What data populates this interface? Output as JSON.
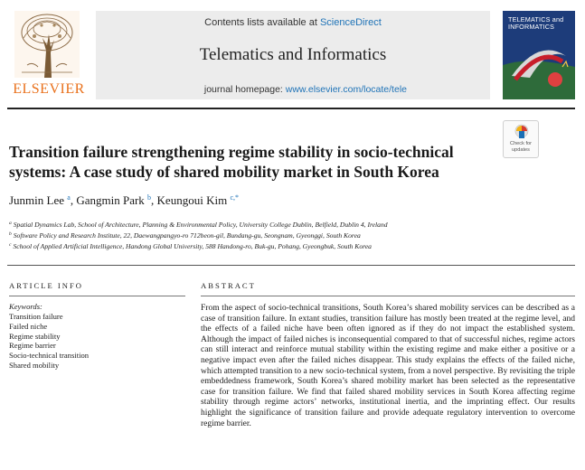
{
  "header": {
    "publisher": "ELSEVIER",
    "contents_prefix": "Contents lists available at ",
    "contents_link": "ScienceDirect",
    "journal_title": "Telematics and Informatics",
    "homepage_prefix": "journal homepage: ",
    "homepage_url": "www.elsevier.com/locate/tele",
    "cover_title": "TELEMATICS and INFORMATICS"
  },
  "check_updates": "Check for updates",
  "article": {
    "title": "Transition failure strengthening regime stability in socio-technical systems: A case study of shared mobility market in South Korea",
    "authors": [
      {
        "name": "Junmin Lee",
        "sup": "a"
      },
      {
        "name": "Gangmin Park",
        "sup": "b"
      },
      {
        "name": "Keungoui Kim",
        "sup": "c,*"
      }
    ],
    "affiliations": [
      {
        "sup": "a",
        "text": "Spatial Dynamics Lab, School of Architecture, Planning & Environmental Policy, University College Dublin, Belfield, Dublin 4, Ireland"
      },
      {
        "sup": "b",
        "text": "Software Policy and Research Institute, 22, Daewangpangyo-ro 712beon-gil, Bundang-gu, Seongnam, Gyeonggi, South Korea"
      },
      {
        "sup": "c",
        "text": "School of Applied Artificial Intelligence, Handong Global University, 588 Handong-ro, Buk-gu, Pohang, Gyeongbuk, South Korea"
      }
    ]
  },
  "article_info": {
    "heading": "ARTICLE INFO",
    "keywords_label": "Keywords:",
    "keywords": [
      "Transition failure",
      "Failed niche",
      "Regime stability",
      "Regime barrier",
      "Socio-technical transition",
      "Shared mobility"
    ]
  },
  "abstract": {
    "heading": "ABSTRACT",
    "text": "From the aspect of socio-technical transitions, South Korea’s shared mobility services can be described as a case of transition failure. In extant studies, transition failure has mostly been treated at the regime level, and the effects of a failed niche have been often ignored as if they do not impact the established system. Although the impact of failed niches is inconsequential compared to that of successful niches, regime actors can still interact and reinforce mutual stability within the existing regime and make either a positive or a negative impact even after the failed niches disappear. This study explains the effects of the failed niche, which attempted transition to a new socio-technical system, from a novel perspective. By revisiting the triple embeddedness framework, South Korea’s shared mobility market has been selected as the representative case for transition failure. We find that failed shared mobility services in South Korea affecting regime stability through regime actors’ networks, institutional inertia, and the imprinting effect. Our results highlight the significance of transition failure and provide adequate regulatory intervention to overcome regime barrier."
  }
}
